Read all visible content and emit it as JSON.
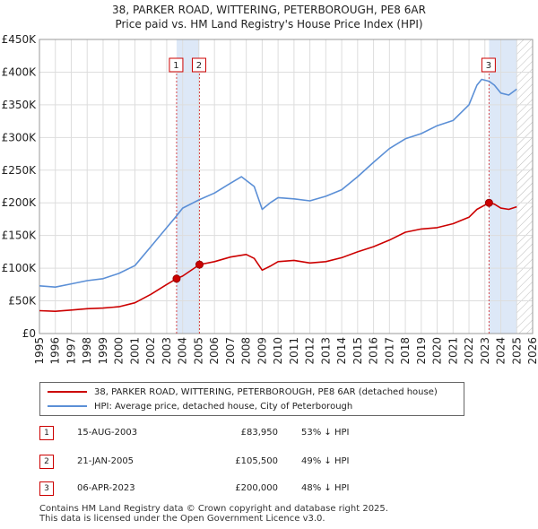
{
  "title": {
    "line1": "38, PARKER ROAD, WITTERING, PETERBOROUGH, PE8 6AR",
    "line2": "Price paid vs. HM Land Registry's House Price Index (HPI)"
  },
  "colors": {
    "property": "#cc0000",
    "hpi": "#5b8fd6",
    "shade": "#dde8f7",
    "grid": "#dddddd"
  },
  "chart_data": {
    "type": "line",
    "title": "Price paid vs. HM Land Registry's House Price Index (HPI)",
    "xlabel": "",
    "ylabel": "",
    "xlim": [
      1995,
      2026
    ],
    "ylim": [
      0,
      450000
    ],
    "yticks": [
      0,
      50000,
      100000,
      150000,
      200000,
      250000,
      300000,
      350000,
      400000,
      450000
    ],
    "ytick_labels": [
      "£0",
      "£50K",
      "£100K",
      "£150K",
      "£200K",
      "£250K",
      "£300K",
      "£350K",
      "£400K",
      "£450K"
    ],
    "xticks": [
      1995,
      1996,
      1997,
      1998,
      1999,
      2000,
      2001,
      2002,
      2003,
      2004,
      2005,
      2006,
      2007,
      2008,
      2009,
      2010,
      2011,
      2012,
      2013,
      2014,
      2015,
      2016,
      2017,
      2018,
      2019,
      2020,
      2021,
      2022,
      2023,
      2024,
      2025,
      2026
    ],
    "grid": true,
    "legend_position": "below",
    "shaded_regions": [
      {
        "from": 2003.62,
        "to": 2005.06
      },
      {
        "from": 2023.26,
        "to": 2025.0
      }
    ],
    "hatched_region": {
      "from": 2025.0,
      "to": 2026
    }
  },
  "series": [
    {
      "name": "38, PARKER ROAD, WITTERING, PETERBOROUGH, PE8 6AR (detached house)",
      "x": [
        1995,
        1996,
        1997,
        1998,
        1999,
        2000,
        2001,
        2002,
        2003,
        2003.62,
        2004,
        2005.06,
        2006,
        2007,
        2008,
        2008.5,
        2009,
        2009.5,
        2010,
        2011,
        2012,
        2013,
        2014,
        2015,
        2016,
        2017,
        2018,
        2019,
        2020,
        2021,
        2022,
        2022.5,
        2023.26,
        2023.6,
        2024,
        2024.5,
        2025
      ],
      "values": [
        35000,
        34000,
        36000,
        38000,
        39000,
        41000,
        47000,
        60000,
        75000,
        83950,
        88000,
        105500,
        110000,
        117000,
        121000,
        115000,
        97000,
        103000,
        110000,
        112000,
        108000,
        110000,
        116000,
        125000,
        133000,
        143000,
        155000,
        160000,
        162000,
        168000,
        178000,
        190000,
        200000,
        198000,
        192000,
        190000,
        194000
      ]
    },
    {
      "name": "HPI: Average price, detached house, City of Peterborough",
      "x": [
        1995,
        1996,
        1997,
        1998,
        1999,
        2000,
        2001,
        2002,
        2003,
        2003.62,
        2004,
        2005.06,
        2006,
        2007,
        2007.7,
        2008.5,
        2009,
        2009.5,
        2010,
        2011,
        2012,
        2013,
        2014,
        2015,
        2016,
        2017,
        2018,
        2019,
        2020,
        2021,
        2022,
        2022.5,
        2022.8,
        2023.26,
        2023.6,
        2024,
        2024.5,
        2025
      ],
      "values": [
        73000,
        71000,
        76000,
        81000,
        84000,
        92000,
        104000,
        133000,
        162000,
        180000,
        192000,
        205000,
        215000,
        230000,
        240000,
        225000,
        190000,
        200000,
        208000,
        206000,
        203000,
        210000,
        220000,
        240000,
        262000,
        283000,
        298000,
        306000,
        318000,
        326000,
        350000,
        380000,
        389000,
        386000,
        380000,
        368000,
        365000,
        374000
      ]
    }
  ],
  "sales": [
    {
      "num": "1",
      "x": 2003.62,
      "value": 83950,
      "date": "15-AUG-2003",
      "price": "£83,950",
      "hpi": "53% ↓ HPI"
    },
    {
      "num": "2",
      "x": 2005.06,
      "value": 105500,
      "date": "21-JAN-2005",
      "price": "£105,500",
      "hpi": "49% ↓ HPI"
    },
    {
      "num": "3",
      "x": 2023.26,
      "value": 200000,
      "date": "06-APR-2023",
      "price": "£200,000",
      "hpi": "48% ↓ HPI"
    }
  ],
  "legend": {
    "property": "38, PARKER ROAD, WITTERING, PETERBOROUGH, PE8 6AR (detached house)",
    "hpi": "HPI: Average price, detached house, City of Peterborough"
  },
  "footer": {
    "line1": "Contains HM Land Registry data © Crown copyright and database right 2025.",
    "line2": "This data is licensed under the Open Government Licence v3.0."
  }
}
